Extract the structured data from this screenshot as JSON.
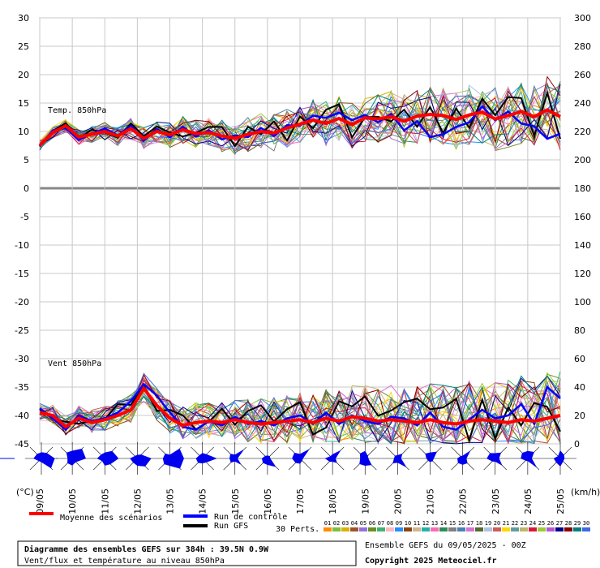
{
  "chart_data": {
    "type": "line",
    "left_axis": {
      "label": "(°C)",
      "ticks": [
        30,
        25,
        20,
        15,
        10,
        5,
        0,
        -5,
        -10,
        -15,
        -20,
        -25,
        -30,
        -35,
        -40,
        -45
      ],
      "range": [
        -45,
        30
      ]
    },
    "right_axis": {
      "label": "(km/h)",
      "ticks": [
        300,
        280,
        260,
        240,
        220,
        200,
        180,
        160,
        140,
        120,
        100,
        80,
        60,
        40,
        20,
        0
      ],
      "range": [
        0,
        300
      ]
    },
    "x_labels": [
      "09/05",
      "10/05",
      "11/05",
      "12/05",
      "13/05",
      "14/05",
      "15/05",
      "16/05",
      "17/05",
      "18/05",
      "19/05",
      "20/05",
      "21/05",
      "22/05",
      "23/05",
      "24/05",
      "25/05"
    ],
    "temp_panel_label": "Temp. 850hPa",
    "wind_panel_label": "Vent 850hPa",
    "grid": true,
    "temp_mean": [
      7.5,
      9.8,
      11.0,
      9.0,
      9.5,
      10.0,
      9.2,
      10.5,
      8.8,
      10.0,
      9.4,
      10.3,
      9.6,
      9.8,
      9.2,
      8.8,
      9.5,
      10.0,
      9.7,
      10.6,
      11.3,
      12.0,
      11.4,
      12.3,
      11.2,
      12.4,
      12.2,
      12.6,
      11.8,
      12.7,
      13.0,
      12.8,
      12.1,
      12.9,
      13.4,
      12.2,
      12.8,
      13.5,
      12.6,
      13.8,
      12.6
    ],
    "temp_control": [
      7.4,
      10.2,
      10.6,
      8.5,
      9.6,
      10.5,
      9.3,
      11.0,
      8.4,
      10.4,
      9.0,
      10.8,
      9.1,
      10.2,
      8.6,
      9.3,
      9.0,
      10.6,
      9.2,
      11.1,
      11.0,
      12.8,
      12.4,
      13.3,
      12.0,
      12.9,
      11.6,
      13.1,
      10.2,
      11.8,
      9.0,
      9.5,
      10.8,
      11.6,
      14.4,
      12.0,
      13.5,
      11.4,
      10.9,
      8.7,
      9.6
    ],
    "wind_mean": [
      22,
      20,
      12,
      18,
      15,
      17,
      20,
      24,
      39,
      27,
      18,
      13,
      15,
      16,
      15,
      17,
      15,
      14,
      15,
      16,
      17,
      15,
      18,
      16,
      19,
      18,
      16,
      17,
      16,
      15,
      17,
      15,
      14,
      16,
      17,
      16,
      15,
      17,
      16,
      18,
      20
    ],
    "wind_control": [
      25,
      18,
      10,
      20,
      16,
      18,
      22,
      30,
      42,
      34,
      22,
      12,
      10,
      16,
      13,
      19,
      14,
      16,
      13,
      18,
      20,
      14,
      22,
      14,
      20,
      16,
      14,
      19,
      18,
      13,
      22,
      12,
      10,
      17,
      24,
      18,
      20,
      28,
      14,
      40,
      32
    ],
    "legend": {
      "mean": "Moyenne des scénarios",
      "control": "Run de contrôle",
      "gfs": "Run GFS",
      "perts": "30 Perts.",
      "mean_color": "#ff0000",
      "control_color": "#0000ff",
      "gfs_color": "#000000"
    },
    "pert_numbers": [
      "01",
      "02",
      "03",
      "04",
      "05",
      "06",
      "07",
      "08",
      "09",
      "10",
      "11",
      "12",
      "13",
      "14",
      "15",
      "16",
      "17",
      "18",
      "19",
      "20",
      "21",
      "22",
      "23",
      "24",
      "25",
      "26",
      "27",
      "28",
      "29",
      "30"
    ],
    "pert_colors": [
      "#ff8c00",
      "#7fbf3f",
      "#d9b300",
      "#a0522d",
      "#9370db",
      "#6b8e23",
      "#3cb371",
      "#ffb6c1",
      "#1e90ff",
      "#8b4513",
      "#d2b48c",
      "#20b2aa",
      "#ff69b4",
      "#2e8b57",
      "#808080",
      "#4682b4",
      "#da70d6",
      "#556b2f",
      "#b0c4de",
      "#cd5c5c",
      "#ffd700",
      "#5f9ea0",
      "#bdb76b",
      "#dc143c",
      "#9acd32",
      "#ba55d3",
      "#00008b",
      "#8b0000",
      "#008080",
      "#4169e1"
    ]
  },
  "footer": {
    "title": "Diagramme des ensembles GEFS sur 384h : 39.5N 0.9W",
    "subtitle": "Vent/flux et température au niveau 850hPa",
    "run": "Ensemble GEFS du 09/05/2025 - 00Z",
    "copyright": "Copyright 2025 Meteociel.fr"
  }
}
